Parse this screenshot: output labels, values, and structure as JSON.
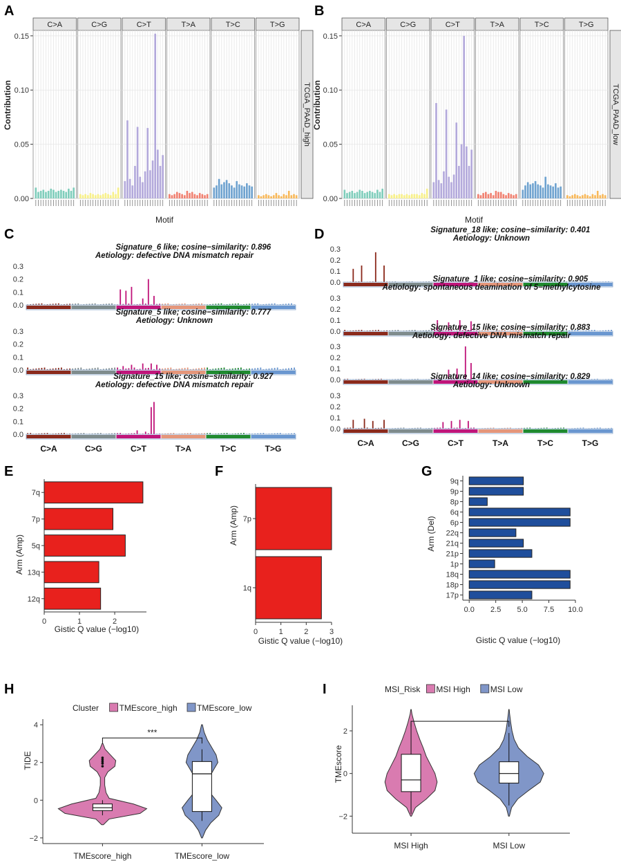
{
  "figure": {
    "panel_labels": [
      "A",
      "B",
      "C",
      "D",
      "E",
      "F",
      "G",
      "H",
      "I"
    ]
  },
  "colors": {
    "C>A": "#7FCDBB",
    "C>G": "#F7F08A",
    "C>T": "#B3A9DB",
    "T>A": "#F08070",
    "T>C": "#6EA2CF",
    "T>G": "#F7B85A",
    "sig": {
      "C>A": "#8B2A1C",
      "C>G": "#7F8C8D",
      "C>T": "#C0157A",
      "T>A": "#E5967A",
      "T>C": "#1F8A2F",
      "T>G": "#6A97D0"
    },
    "amp_bar": "#E8211D",
    "del_bar": "#1F4E9C",
    "violin_high": "#D97BB0",
    "violin_low": "#8096C8"
  },
  "chart_data": [
    {
      "id": "A",
      "type": "bar",
      "title": "",
      "facets": [
        "C>A",
        "C>G",
        "C>T",
        "T>A",
        "T>C",
        "T>G"
      ],
      "strip_right": "TCGA_PAAD_high",
      "ylabel": "Contribution",
      "xlabel": "Motif",
      "ylim": [
        0,
        0.155
      ],
      "yticks": [
        0.0,
        0.05,
        0.1,
        0.15
      ],
      "ytick_labels": [
        "0.00",
        "0.05",
        "0.10",
        "0.15"
      ],
      "values": {
        "C>A": [
          0.01,
          0.006,
          0.007,
          0.008,
          0.006,
          0.007,
          0.009,
          0.008,
          0.006,
          0.007,
          0.008,
          0.007,
          0.006,
          0.009,
          0.007,
          0.01
        ],
        "C>G": [
          0.004,
          0.003,
          0.004,
          0.003,
          0.005,
          0.004,
          0.003,
          0.004,
          0.003,
          0.004,
          0.005,
          0.004,
          0.003,
          0.006,
          0.004,
          0.01
        ],
        "C>T": [
          0.016,
          0.072,
          0.018,
          0.012,
          0.03,
          0.066,
          0.02,
          0.015,
          0.025,
          0.065,
          0.026,
          0.035,
          0.152,
          0.045,
          0.03,
          0.04
        ],
        "T>A": [
          0.004,
          0.003,
          0.004,
          0.006,
          0.005,
          0.004,
          0.003,
          0.007,
          0.005,
          0.006,
          0.004,
          0.003,
          0.005,
          0.004,
          0.003,
          0.004
        ],
        "T>C": [
          0.01,
          0.012,
          0.018,
          0.013,
          0.015,
          0.017,
          0.014,
          0.012,
          0.01,
          0.016,
          0.013,
          0.012,
          0.011,
          0.014,
          0.012,
          0.011
        ],
        "T>G": [
          0.003,
          0.002,
          0.003,
          0.004,
          0.003,
          0.002,
          0.003,
          0.005,
          0.003,
          0.002,
          0.004,
          0.003,
          0.007,
          0.003,
          0.004,
          0.003
        ]
      }
    },
    {
      "id": "B",
      "type": "bar",
      "title": "",
      "facets": [
        "C>A",
        "C>G",
        "C>T",
        "T>A",
        "T>C",
        "T>G"
      ],
      "strip_right": "TCGA_PAAD_low",
      "ylabel": "Contribution",
      "xlabel": "Motif",
      "ylim": [
        0,
        0.155
      ],
      "yticks": [
        0.0,
        0.05,
        0.1,
        0.15
      ],
      "ytick_labels": [
        "0.00",
        "0.05",
        "0.10",
        "0.15"
      ],
      "values": {
        "C>A": [
          0.008,
          0.005,
          0.006,
          0.007,
          0.005,
          0.006,
          0.008,
          0.007,
          0.005,
          0.006,
          0.007,
          0.006,
          0.005,
          0.008,
          0.006,
          0.009
        ],
        "C>G": [
          0.004,
          0.003,
          0.004,
          0.003,
          0.004,
          0.004,
          0.003,
          0.004,
          0.003,
          0.004,
          0.004,
          0.004,
          0.003,
          0.005,
          0.004,
          0.009
        ],
        "C>T": [
          0.015,
          0.088,
          0.017,
          0.014,
          0.025,
          0.082,
          0.02,
          0.015,
          0.022,
          0.07,
          0.03,
          0.05,
          0.15,
          0.048,
          0.03,
          0.045
        ],
        "T>A": [
          0.004,
          0.003,
          0.005,
          0.006,
          0.004,
          0.005,
          0.003,
          0.007,
          0.006,
          0.006,
          0.004,
          0.003,
          0.005,
          0.004,
          0.003,
          0.004
        ],
        "T>C": [
          0.008,
          0.012,
          0.015,
          0.013,
          0.014,
          0.016,
          0.013,
          0.012,
          0.01,
          0.02,
          0.013,
          0.012,
          0.011,
          0.014,
          0.01,
          0.011
        ],
        "T>G": [
          0.003,
          0.002,
          0.003,
          0.004,
          0.003,
          0.002,
          0.003,
          0.004,
          0.003,
          0.002,
          0.004,
          0.003,
          0.007,
          0.003,
          0.004,
          0.003
        ]
      }
    },
    {
      "id": "C",
      "type": "bar",
      "ylim": [
        0,
        0.3
      ],
      "yticks": [
        0.0,
        0.1,
        0.2,
        0.3
      ],
      "ytick_labels": [
        "0.0",
        "0.1",
        "0.2",
        "0.3"
      ],
      "categories": [
        "C>A",
        "C>G",
        "C>T",
        "T>A",
        "T>C",
        "T>G"
      ],
      "signatures": [
        {
          "title": "Signature_6 like; cosine−similarity: 0.896",
          "aetiology": "Aetiology: defective DNA mismatch repair",
          "peaks": {
            "C>T": [
              [
                1,
                0.12
              ],
              [
                3,
                0.11
              ],
              [
                5,
                0.14
              ],
              [
                9,
                0.05
              ],
              [
                11,
                0.2
              ],
              [
                13,
                0.07
              ]
            ]
          },
          "base": 0.01
        },
        {
          "title": "Signature_5 like; cosine−similarity: 0.777",
          "aetiology": "Aetiology: Unknown",
          "peaks": {
            "C>T": [
              [
                2,
                0.03
              ],
              [
                5,
                0.04
              ],
              [
                9,
                0.05
              ],
              [
                12,
                0.05
              ],
              [
                14,
                0.04
              ]
            ]
          },
          "base": 0.015
        },
        {
          "title": "Signature_15 like; cosine−similarity: 0.927",
          "aetiology": "Aetiology: defective DNA mismatch repair",
          "peaks": {
            "C>T": [
              [
                7,
                0.03
              ],
              [
                10,
                0.02
              ],
              [
                12,
                0.21
              ],
              [
                13,
                0.25
              ]
            ]
          },
          "base": 0.008
        }
      ]
    },
    {
      "id": "D",
      "type": "bar",
      "ylim": [
        0,
        0.3
      ],
      "yticks": [
        0.0,
        0.1,
        0.2,
        0.3
      ],
      "ytick_labels": [
        "0.0",
        "0.1",
        "0.2",
        "0.3"
      ],
      "categories": [
        "C>A",
        "C>G",
        "C>T",
        "T>A",
        "T>C",
        "T>G"
      ],
      "signatures": [
        {
          "title": "Signature_18 like; cosine−similarity: 0.401",
          "aetiology": "Aetiology: Unknown",
          "peaks": {
            "C>A": [
              [
                3,
                0.12
              ],
              [
                6,
                0.15
              ],
              [
                11,
                0.27
              ],
              [
                14,
                0.15
              ]
            ]
          },
          "base": 0.005
        },
        {
          "title": "Signature_1 like; cosine−similarity: 0.905",
          "aetiology": "Aetiology: spontaneous deamination of 5−methylcytosine",
          "peaks": {
            "C>T": [
              [
                1,
                0.1
              ],
              [
                5,
                0.08
              ],
              [
                9,
                0.1
              ],
              [
                13,
                0.09
              ]
            ]
          },
          "base": 0.01
        },
        {
          "title": "Signature_15 like; cosine−similarity: 0.883",
          "aetiology": "Aetiology: defective DNA mismatch repair",
          "peaks": {
            "C>T": [
              [
                5,
                0.09
              ],
              [
                8,
                0.1
              ],
              [
                11,
                0.3
              ],
              [
                13,
                0.15
              ]
            ]
          },
          "base": 0.006
        },
        {
          "title": "Signature_14 like; cosine−similarity: 0.829",
          "aetiology": "Aetiology: Unknown",
          "peaks": {
            "C>A": [
              [
                3,
                0.08
              ],
              [
                7,
                0.09
              ],
              [
                10,
                0.07
              ],
              [
                14,
                0.08
              ]
            ],
            "C>T": [
              [
                3,
                0.06
              ],
              [
                6,
                0.07
              ],
              [
                9,
                0.08
              ],
              [
                12,
                0.07
              ]
            ]
          },
          "base": 0.008
        }
      ]
    },
    {
      "id": "E",
      "type": "bar",
      "orientation": "horizontal",
      "categories": [
        "7q",
        "7p",
        "5q",
        "13q",
        "12q"
      ],
      "values": [
        2.8,
        1.95,
        2.3,
        1.55,
        1.6
      ],
      "xlabel": "Gistic Q value (−log10)",
      "ylabel": "Arm (Amp)",
      "xlim": [
        0,
        2.9
      ],
      "xticks": [
        0,
        1,
        2
      ],
      "xtick_labels": [
        "0",
        "1",
        "2"
      ]
    },
    {
      "id": "F",
      "type": "bar",
      "orientation": "horizontal",
      "categories": [
        "7p",
        "1q"
      ],
      "values": [
        3.0,
        2.6
      ],
      "xlabel": "Gistic Q value (−log10)",
      "ylabel": "Arm (Amp)",
      "xlim": [
        0,
        3.0
      ],
      "xticks": [
        0,
        1,
        2,
        3
      ],
      "xtick_labels": [
        "0",
        "1",
        "2",
        "3"
      ]
    },
    {
      "id": "G",
      "type": "bar",
      "orientation": "horizontal",
      "categories": [
        "9q",
        "9p",
        "8p",
        "6q",
        "6p",
        "22q",
        "21q",
        "21p",
        "1p",
        "18q",
        "18p",
        "17p"
      ],
      "values": [
        5.1,
        5.1,
        1.7,
        9.5,
        9.5,
        4.4,
        5.1,
        5.9,
        2.4,
        9.5,
        9.5,
        5.9
      ],
      "xlabel": "Gistic Q value (−log10)",
      "ylabel": "Arm (Del)",
      "xlim": [
        -0.6,
        10.0
      ],
      "xticks": [
        0,
        2.5,
        5,
        7.5,
        10
      ],
      "xtick_labels": [
        "0.0",
        "2.5",
        "5.0",
        "7.5",
        "10.0"
      ]
    },
    {
      "id": "H",
      "type": "violin",
      "categories": [
        "TMEscore_high",
        "TMEscore_low"
      ],
      "legend_title": "Cluster",
      "legend": [
        "TMEscore_high",
        "TMEscore_low"
      ],
      "ylabel": "TIDE",
      "ylim": [
        -2.3,
        4.3
      ],
      "yticks": [
        -2,
        0,
        2,
        4
      ],
      "ytick_labels": [
        "−2",
        "0",
        "2",
        "4"
      ],
      "significance": "***",
      "box": [
        {
          "q1": -0.55,
          "median": -0.4,
          "q3": -0.2,
          "whisker_low": -0.8,
          "whisker_high": 0.0,
          "outliers": [
            1.8,
            1.95,
            2.05,
            2.15,
            2.25
          ]
        },
        {
          "q1": -0.6,
          "median": 1.4,
          "q3": 2.05,
          "whisker_low": -1.1,
          "whisker_high": 2.7,
          "outliers": []
        }
      ],
      "violin": [
        {
          "min": -1.3,
          "max": 3.0,
          "profile": [
            [
              -1.3,
              0.02
            ],
            [
              -1.0,
              0.15
            ],
            [
              -0.7,
              0.85
            ],
            [
              -0.45,
              1.0
            ],
            [
              -0.2,
              0.7
            ],
            [
              0.1,
              0.15
            ],
            [
              0.4,
              0.08
            ],
            [
              0.8,
              0.05
            ],
            [
              1.2,
              0.05
            ],
            [
              1.5,
              0.12
            ],
            [
              1.8,
              0.28
            ],
            [
              2.1,
              0.3
            ],
            [
              2.4,
              0.18
            ],
            [
              2.7,
              0.06
            ],
            [
              3.0,
              0.01
            ]
          ]
        },
        {
          "min": -2.0,
          "max": 4.0,
          "profile": [
            [
              -2.0,
              0.01
            ],
            [
              -1.6,
              0.08
            ],
            [
              -1.2,
              0.2
            ],
            [
              -0.8,
              0.38
            ],
            [
              -0.4,
              0.45
            ],
            [
              0.0,
              0.32
            ],
            [
              0.4,
              0.18
            ],
            [
              0.8,
              0.12
            ],
            [
              1.2,
              0.16
            ],
            [
              1.6,
              0.26
            ],
            [
              2.0,
              0.36
            ],
            [
              2.4,
              0.32
            ],
            [
              2.8,
              0.22
            ],
            [
              3.2,
              0.12
            ],
            [
              3.6,
              0.05
            ],
            [
              4.0,
              0.01
            ]
          ]
        }
      ]
    },
    {
      "id": "I",
      "type": "violin",
      "categories": [
        "MSI High",
        "MSI Low"
      ],
      "legend_title": "MSI_Risk",
      "legend": [
        "MSI High",
        "MSI Low"
      ],
      "ylabel": "TMEscore",
      "ylim": [
        -2.8,
        3.2
      ],
      "yticks": [
        -2,
        0,
        2
      ],
      "ytick_labels": [
        "−2",
        "0",
        "2"
      ],
      "significance": "",
      "box": [
        {
          "q1": -0.85,
          "median": -0.3,
          "q3": 0.9,
          "whisker_low": -1.9,
          "whisker_high": 2.35,
          "outliers": []
        },
        {
          "q1": -0.45,
          "median": 0.0,
          "q3": 0.55,
          "whisker_low": -1.5,
          "whisker_high": 1.9,
          "outliers": []
        }
      ],
      "violin": [
        {
          "min": -2.0,
          "max": 3.0,
          "profile": [
            [
              -2.0,
              0.01
            ],
            [
              -1.6,
              0.1
            ],
            [
              -1.2,
              0.35
            ],
            [
              -0.8,
              0.55
            ],
            [
              -0.4,
              0.6
            ],
            [
              0.0,
              0.55
            ],
            [
              0.4,
              0.45
            ],
            [
              0.8,
              0.35
            ],
            [
              1.2,
              0.28
            ],
            [
              1.6,
              0.2
            ],
            [
              2.0,
              0.13
            ],
            [
              2.4,
              0.07
            ],
            [
              2.8,
              0.02
            ],
            [
              3.0,
              0.005
            ]
          ]
        },
        {
          "min": -2.0,
          "max": 3.0,
          "profile": [
            [
              -2.0,
              0.01
            ],
            [
              -1.6,
              0.06
            ],
            [
              -1.2,
              0.2
            ],
            [
              -0.8,
              0.45
            ],
            [
              -0.4,
              0.72
            ],
            [
              0.0,
              0.8
            ],
            [
              0.4,
              0.68
            ],
            [
              0.8,
              0.42
            ],
            [
              1.2,
              0.22
            ],
            [
              1.6,
              0.12
            ],
            [
              2.0,
              0.07
            ],
            [
              2.4,
              0.04
            ],
            [
              2.8,
              0.015
            ],
            [
              3.0,
              0.005
            ]
          ]
        }
      ]
    }
  ]
}
